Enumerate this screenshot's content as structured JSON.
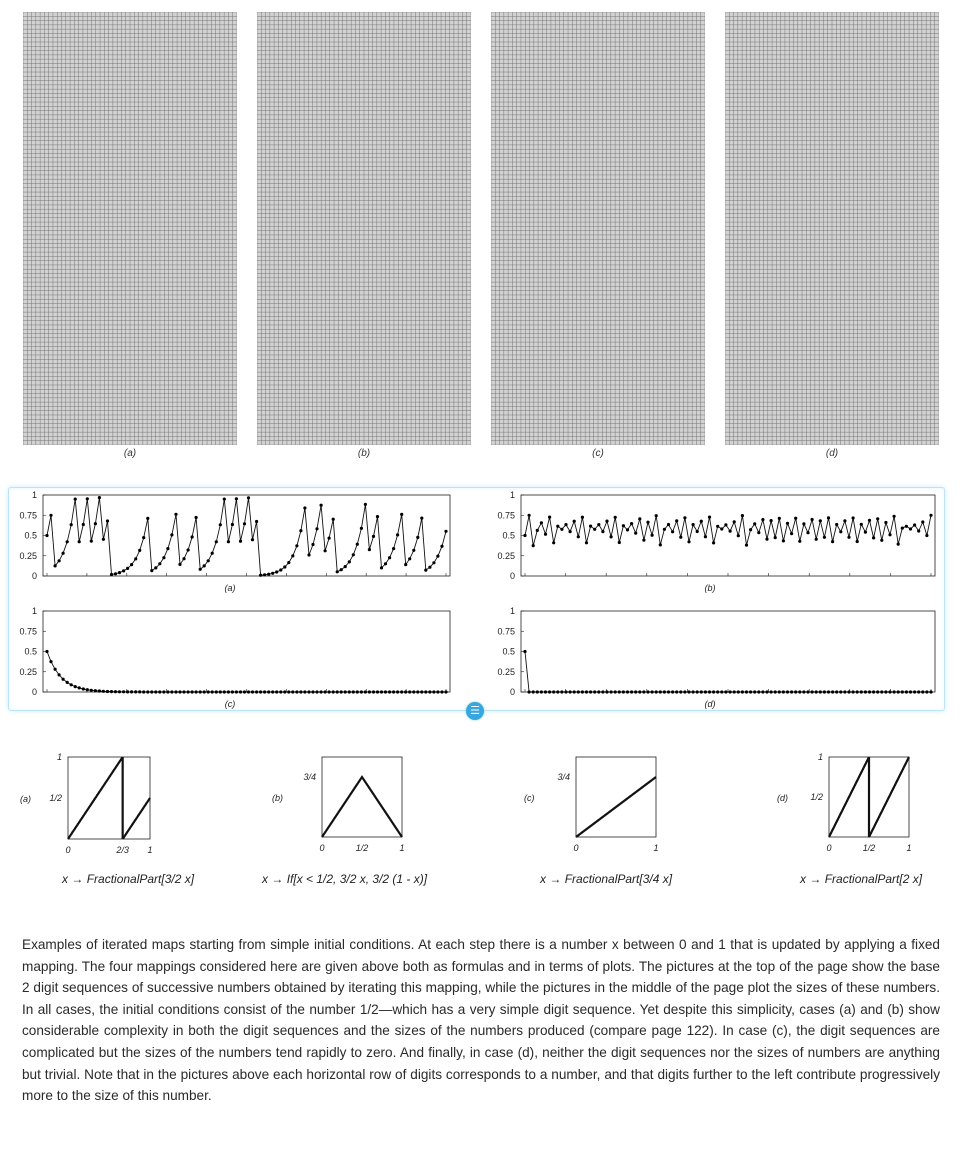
{
  "digit_grids": {
    "labels": [
      "(a)",
      "(b)",
      "(c)",
      "(d)"
    ]
  },
  "size_plots": {
    "labels": [
      "(a)",
      "(b)",
      "(c)",
      "(d)"
    ],
    "y_ticks": [
      "1",
      "0.75",
      "0.5",
      "0.25",
      "0"
    ]
  },
  "map_plots": [
    {
      "label": "(a)",
      "y_ticks": [
        "1",
        "1/2"
      ],
      "x_ticks": [
        "0",
        "2/3",
        "1"
      ]
    },
    {
      "label": "(b)",
      "y_ticks": [
        "3/4"
      ],
      "x_ticks": [
        "0",
        "1/2",
        "1"
      ]
    },
    {
      "label": "(c)",
      "y_ticks": [
        "3/4"
      ],
      "x_ticks": [
        "0",
        "1"
      ]
    },
    {
      "label": "(d)",
      "y_ticks": [
        "1",
        "1/2"
      ],
      "x_ticks": [
        "0",
        "1/2",
        "1"
      ]
    }
  ],
  "formulas": [
    {
      "var": "x",
      "arrow": "→",
      "expr": "FractionalPart[3/2 x]"
    },
    {
      "var": "x",
      "arrow": "→",
      "expr": "If[x < 1/2, 3/2 x, 3/2 (1 - x)]"
    },
    {
      "var": "x",
      "arrow": "→",
      "expr": "FractionalPart[3/4 x]"
    },
    {
      "var": "x",
      "arrow": "→",
      "expr": "FractionalPart[2 x]"
    }
  ],
  "caption": "Examples of iterated maps starting from simple initial conditions. At each step there is a number x between 0 and 1 that is updated by applying a fixed mapping. The four mappings considered here are given above both as formulas and in terms of plots. The pictures at the top of the page show the base 2 digit sequences of successive numbers obtained by iterating this mapping, while the pictures in the middle of the page plot the sizes of these numbers. In all cases, the initial conditions consist of the number 1/2—which has a very simple digit sequence. Yet despite this simplicity, cases (a) and (b) show considerable complexity in both the digit sequences and the sizes of the numbers produced (compare page 122). In case (c), the digit sequences are complicated but the sizes of the numbers tend rapidly to zero. And finally, in case (d), neither the digit sequences nor the sizes of numbers are anything but trivial. Note that in the pictures above each horizontal row of digits corresponds to a number, and that digits further to the left contribute progressively more to the size of this number.",
  "colors": {
    "cell_on": "#000000",
    "cell_off": "#d2d2d2",
    "grid_line": "#6e6e6e",
    "accent": "#39a7df"
  }
}
